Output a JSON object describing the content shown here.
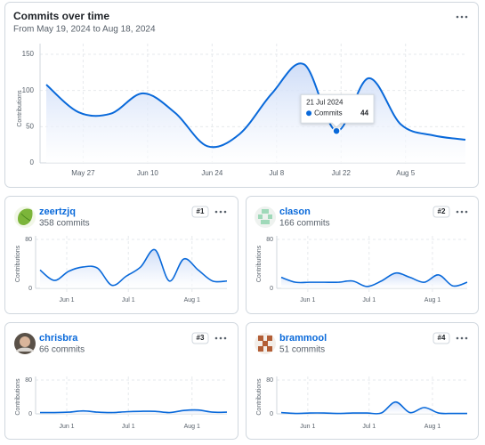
{
  "chart_data": [
    {
      "type": "area",
      "title": "Commits over time",
      "subtitle": "From May 19, 2024 to Aug 18, 2024",
      "y_label": "Contributions",
      "color": "#0969da",
      "x": [
        "2024-05-19",
        "2024-05-26",
        "2024-06-02",
        "2024-06-09",
        "2024-06-16",
        "2024-06-23",
        "2024-06-30",
        "2024-07-07",
        "2024-07-14",
        "2024-07-21",
        "2024-07-28",
        "2024-08-04",
        "2024-08-11",
        "2024-08-18"
      ],
      "values": [
        108,
        70,
        68,
        96,
        69,
        23,
        40,
        96,
        136,
        44,
        117,
        53,
        38,
        32
      ],
      "xlim": [
        "2024-05-19",
        "2024-08-18"
      ],
      "xticks": [
        {
          "value": "2024-05-27",
          "label": "May 27"
        },
        {
          "value": "2024-06-10",
          "label": "Jun 10"
        },
        {
          "value": "2024-06-24",
          "label": "Jun 24"
        },
        {
          "value": "2024-07-08",
          "label": "Jul 8"
        },
        {
          "value": "2024-07-22",
          "label": "Jul 22"
        },
        {
          "value": "2024-08-05",
          "label": "Aug 5"
        }
      ],
      "ylim": [
        0,
        150
      ],
      "yticks": [
        0,
        50,
        100,
        150
      ],
      "tooltip": {
        "date": "21 Jul 2024",
        "label": "Commits",
        "value": 44
      }
    },
    {
      "type": "area",
      "title": "zeertzjq",
      "subtitle": "358 commits",
      "rank": "#1",
      "y_label": "Contributions",
      "color": "#0969da",
      "x": [
        "2024-05-19",
        "2024-05-26",
        "2024-06-02",
        "2024-06-09",
        "2024-06-16",
        "2024-06-23",
        "2024-06-30",
        "2024-07-07",
        "2024-07-14",
        "2024-07-21",
        "2024-07-28",
        "2024-08-04",
        "2024-08-11",
        "2024-08-18"
      ],
      "values": [
        30,
        13,
        28,
        35,
        33,
        5,
        20,
        35,
        63,
        12,
        48,
        30,
        12,
        12
      ],
      "xlim": [
        "2024-05-19",
        "2024-08-18"
      ],
      "xticks": [
        {
          "value": "2024-06-01",
          "label": "Jun 1"
        },
        {
          "value": "2024-07-01",
          "label": "Jul 1"
        },
        {
          "value": "2024-08-01",
          "label": "Aug 1"
        }
      ],
      "ylim": [
        0,
        80
      ],
      "yticks": [
        0,
        80
      ]
    },
    {
      "type": "area",
      "title": "clason",
      "subtitle": "166 commits",
      "rank": "#2",
      "y_label": "Contributions",
      "color": "#0969da",
      "x": [
        "2024-05-19",
        "2024-05-26",
        "2024-06-02",
        "2024-06-09",
        "2024-06-16",
        "2024-06-23",
        "2024-06-30",
        "2024-07-07",
        "2024-07-14",
        "2024-07-21",
        "2024-07-28",
        "2024-08-04",
        "2024-08-11",
        "2024-08-18"
      ],
      "values": [
        18,
        10,
        10,
        10,
        10,
        12,
        3,
        12,
        25,
        18,
        10,
        22,
        4,
        10
      ],
      "xlim": [
        "2024-05-19",
        "2024-08-18"
      ],
      "xticks": [
        {
          "value": "2024-06-01",
          "label": "Jun 1"
        },
        {
          "value": "2024-07-01",
          "label": "Jul 1"
        },
        {
          "value": "2024-08-01",
          "label": "Aug 1"
        }
      ],
      "ylim": [
        0,
        80
      ],
      "yticks": [
        0,
        80
      ]
    },
    {
      "type": "area",
      "title": "chrisbra",
      "subtitle": "66 commits",
      "rank": "#3",
      "y_label": "Contributions",
      "color": "#0969da",
      "x": [
        "2024-05-19",
        "2024-05-26",
        "2024-06-02",
        "2024-06-09",
        "2024-06-16",
        "2024-06-23",
        "2024-06-30",
        "2024-07-07",
        "2024-07-14",
        "2024-07-21",
        "2024-07-28",
        "2024-08-04",
        "2024-08-11",
        "2024-08-18"
      ],
      "values": [
        3,
        3,
        4,
        7,
        4,
        3,
        5,
        6,
        6,
        3,
        8,
        9,
        4,
        4
      ],
      "xlim": [
        "2024-05-19",
        "2024-08-18"
      ],
      "xticks": [
        {
          "value": "2024-06-01",
          "label": "Jun 1"
        },
        {
          "value": "2024-07-01",
          "label": "Jul 1"
        },
        {
          "value": "2024-08-01",
          "label": "Aug 1"
        }
      ],
      "ylim": [
        0,
        80
      ],
      "yticks": [
        0,
        80
      ]
    },
    {
      "type": "area",
      "title": "brammool",
      "subtitle": "51 commits",
      "rank": "#4",
      "y_label": "Contributions",
      "color": "#0969da",
      "x": [
        "2024-05-19",
        "2024-05-26",
        "2024-06-02",
        "2024-06-09",
        "2024-06-16",
        "2024-06-23",
        "2024-06-30",
        "2024-07-07",
        "2024-07-14",
        "2024-07-21",
        "2024-07-28",
        "2024-08-04",
        "2024-08-11",
        "2024-08-18"
      ],
      "values": [
        3,
        1,
        2,
        2,
        1,
        2,
        2,
        2,
        28,
        3,
        15,
        2,
        1,
        1
      ],
      "xlim": [
        "2024-05-19",
        "2024-08-18"
      ],
      "xticks": [
        {
          "value": "2024-06-01",
          "label": "Jun 1"
        },
        {
          "value": "2024-07-01",
          "label": "Jul 1"
        },
        {
          "value": "2024-08-01",
          "label": "Aug 1"
        }
      ],
      "ylim": [
        0,
        80
      ],
      "yticks": [
        0,
        80
      ]
    }
  ]
}
